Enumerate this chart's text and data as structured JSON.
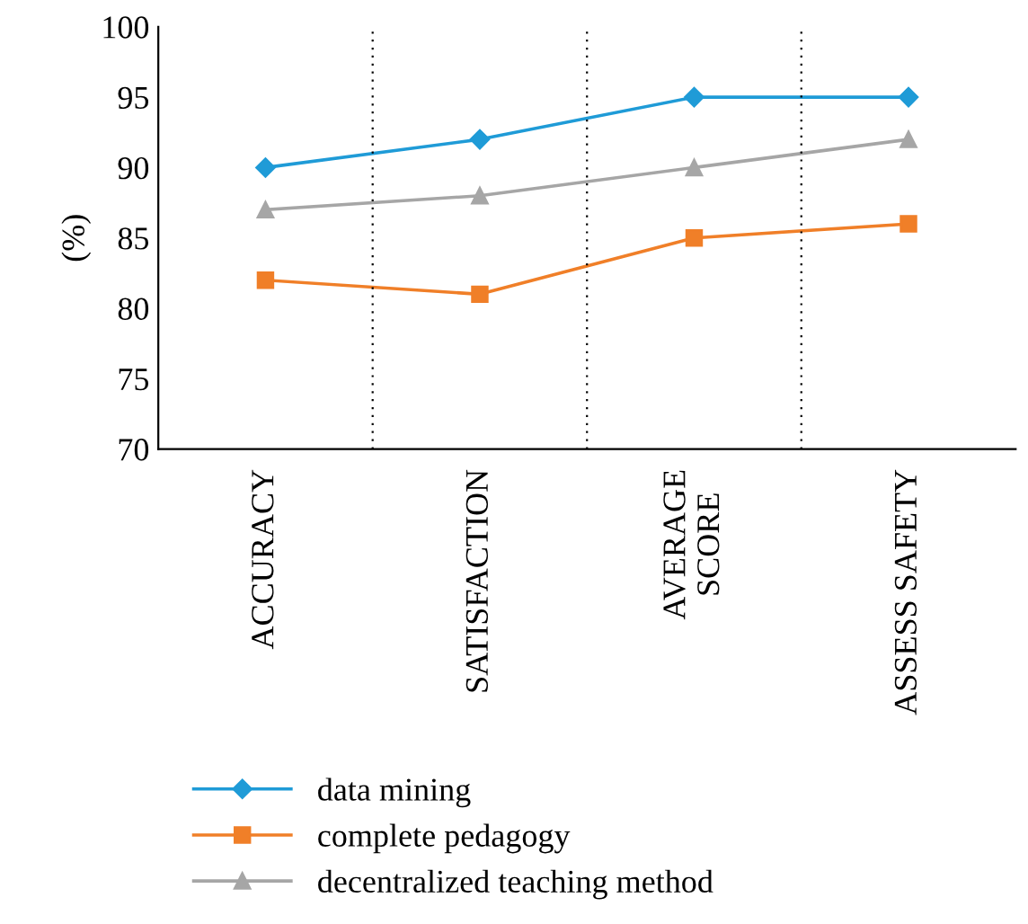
{
  "chart_data": {
    "type": "line",
    "ylabel": "(%)",
    "categories": [
      "ACCURACY",
      "SATISFACTION",
      "AVERAGE\nSCORE",
      "ASSESS SAFETY"
    ],
    "series": [
      {
        "name": "data mining",
        "color": "#1f9bd7",
        "marker": "diamond",
        "values": [
          90,
          92,
          95,
          95
        ]
      },
      {
        "name": "complete pedagogy",
        "color": "#f07f28",
        "marker": "square",
        "values": [
          82,
          81,
          85,
          86
        ]
      },
      {
        "name": "decentralized teaching method",
        "color": "#a6a6a6",
        "marker": "triangle",
        "values": [
          87,
          88,
          90,
          92
        ]
      }
    ],
    "ylim": [
      70,
      100
    ],
    "yticks": [
      70,
      75,
      80,
      85,
      90,
      95,
      100
    ],
    "grid": "x",
    "legend": "bottom",
    "line_style": "solid"
  }
}
